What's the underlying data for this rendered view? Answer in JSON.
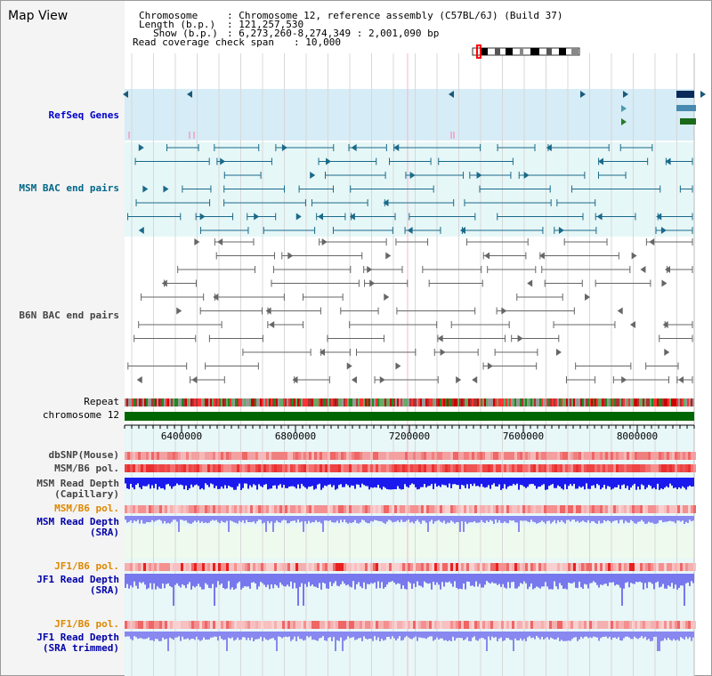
{
  "title": "Map View",
  "info": {
    "chromosome_label": "Chromosome",
    "chromosome_value": ": Chromosome 12, reference assembly (C57BL/6J) (Build 37)",
    "length_label": "Length (b.p.)",
    "length_value": ": 121,257,530",
    "show_label": "Show (b.p.)",
    "show_value": ": 6,273,260-8,274,349 : 2,001,090 bp",
    "coverage_label": "Read coverage check span",
    "coverage_value": ": 10,000"
  },
  "tracks": {
    "refseq": "RefSeq Genes",
    "msm_bac": "MSM BAC end pairs",
    "b6n_bac": "B6N BAC end pairs",
    "repeat": "Repeat",
    "chromosome": "chromosome 12",
    "dbsnp": "dbSNP(Mouse)",
    "msm_pol": "MSM/B6 pol.",
    "msm_depth_cap": "MSM Read Depth\n(Capillary)",
    "msm_pol2": "MSM/B6 pol.",
    "msm_depth_sra": "MSM Read Depth\n(SRA)",
    "jf1_pol": "JF1/B6 pol.",
    "jf1_depth_sra": "JF1 Read Depth\n(SRA)",
    "jf1_pol2": "JF1/B6 pol.",
    "jf1_depth_trim": "JF1 Read Depth\n(SRA trimmed)"
  },
  "axis": {
    "ticks": [
      "6400000",
      "6800000",
      "7200000",
      "7600000",
      "8000000"
    ]
  },
  "colors": {
    "refseq_label": "#0000cc",
    "msm_label": "#006688",
    "b6n_label": "#444444",
    "msm_pol_label": "#cc8800",
    "jf1_pol_label": "#dd8800",
    "depth_label": "#0000aa",
    "chromosome_bar": "#006600"
  }
}
